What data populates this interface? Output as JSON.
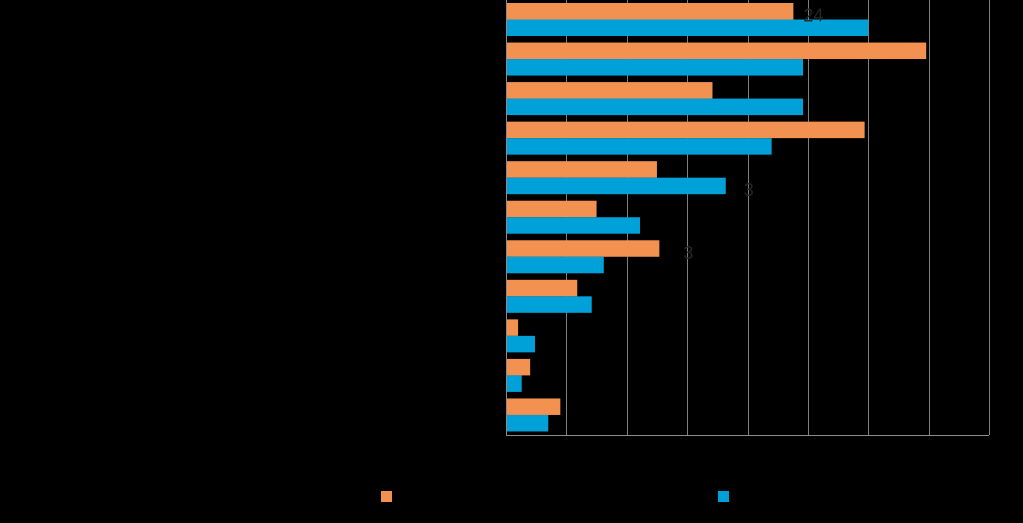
{
  "chart_data": {
    "type": "bar",
    "orientation": "horizontal",
    "title": "",
    "xlabel": "",
    "ylabel": "",
    "xlim": [
      0,
      40
    ],
    "x_gridline_step": 5,
    "grid": true,
    "legend_position": "bottom",
    "categories": [
      "",
      "",
      "",
      "",
      "",
      "",
      "",
      "",
      "",
      "",
      ""
    ],
    "series": [
      {
        "name": "",
        "color": "#F39150",
        "values": [
          23.8,
          34.8,
          17.1,
          29.7,
          12.5,
          7.5,
          12.7,
          5.9,
          1.0,
          2.0,
          4.5
        ]
      },
      {
        "name": "",
        "color": "#00A0D8",
        "values": [
          30.0,
          24.6,
          24.6,
          22.0,
          18.2,
          11.1,
          8.1,
          7.1,
          2.4,
          1.3,
          3.5
        ]
      }
    ],
    "annotations": [
      "24",
      "3",
      "3"
    ]
  }
}
